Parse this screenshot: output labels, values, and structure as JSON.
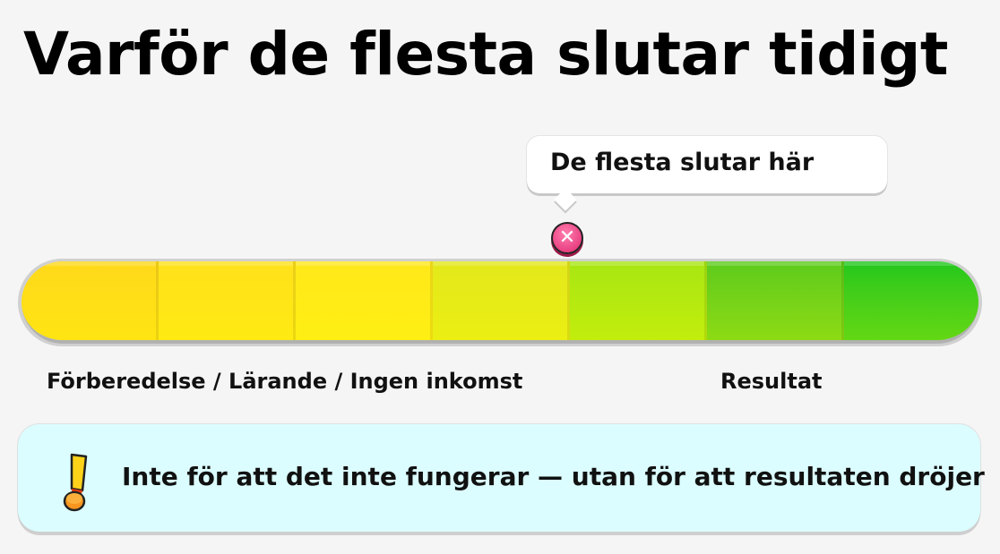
{
  "title": "Varför de flesta slutar tidigt",
  "callout": {
    "text": "De flesta slutar här",
    "marker_icon": "x-circle-icon",
    "marker_symbol": "✕"
  },
  "progress_bar": {
    "segments": [
      "#ffd91a",
      "#ffe11a",
      "#ffe81a",
      "#e3e81a",
      "#a8e612",
      "#5ccb1c",
      "#1fc71c"
    ],
    "marker_position_segment": 4
  },
  "labels": {
    "left": "Förberedelse / Lärande / Ingen inkomst",
    "right": "Resultat"
  },
  "note": {
    "icon": "exclamation-icon",
    "text": "Inte för att det inte fungerar — utan för att resultaten dröjer",
    "background": "#dbfdff"
  }
}
